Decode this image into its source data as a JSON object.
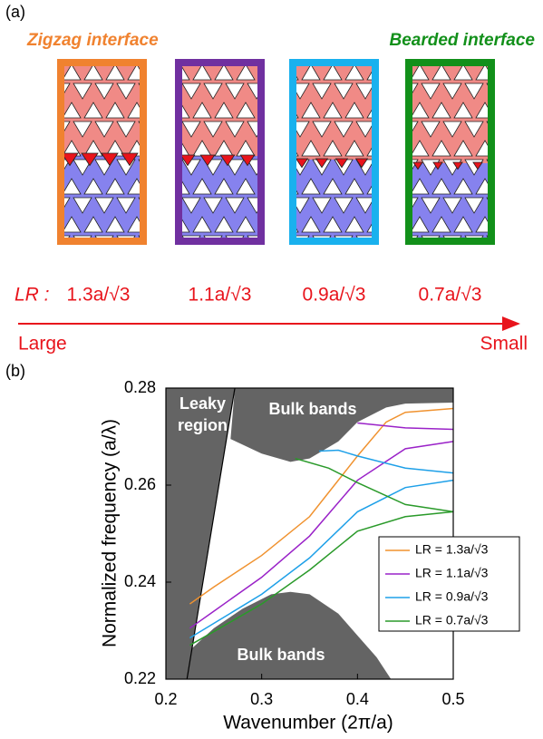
{
  "panel_a": {
    "label": "(a)",
    "left_title": "Zigzag interface",
    "right_title": "Bearded interface",
    "lr_label": "LR :",
    "lengths": [
      "1.3a/√3",
      "1.1a/√3",
      "0.9a/√3",
      "0.7a/√3"
    ],
    "border_colors": [
      "#f0822f",
      "#7030a0",
      "#19b1ee",
      "#12901a"
    ],
    "arrow_start": "Large",
    "arrow_end": "Small"
  },
  "chart_data": {
    "type": "line",
    "panel_label": "(b)",
    "xlabel": "Wavenumber (2π/a)",
    "ylabel": "Normalized frequency (a/λ)",
    "xlim": [
      0.2,
      0.5
    ],
    "ylim": [
      0.22,
      0.28
    ],
    "xticks": [
      0.2,
      0.3,
      0.4,
      0.5
    ],
    "yticks": [
      0.22,
      0.24,
      0.26,
      0.28
    ],
    "leaky_label": [
      "Leaky",
      "region"
    ],
    "upper_band_label": "Bulk bands",
    "lower_band_label": "Bulk bands",
    "light_line": {
      "x": [
        0.222,
        0.272
      ],
      "values": [
        0.22,
        0.28
      ]
    },
    "upper_band": {
      "x": [
        0.2675,
        0.3,
        0.33,
        0.35,
        0.38,
        0.4,
        0.43,
        0.45,
        0.5
      ],
      "values": [
        0.2695,
        0.2665,
        0.2648,
        0.2655,
        0.269,
        0.273,
        0.276,
        0.2768,
        0.277
      ]
    },
    "lower_band": {
      "x": [
        0.2225,
        0.25,
        0.28,
        0.31,
        0.33,
        0.35,
        0.38,
        0.4,
        0.42,
        0.435
      ],
      "values": [
        0.2255,
        0.2305,
        0.2345,
        0.2375,
        0.238,
        0.2375,
        0.2335,
        0.229,
        0.2245,
        0.22
      ]
    },
    "series": [
      {
        "name": "LR = 1.3a/√3",
        "color": "#f0922f",
        "x": [
          0.225,
          0.25,
          0.3,
          0.35,
          0.4,
          0.43,
          0.45,
          0.5
        ],
        "values": [
          0.2355,
          0.239,
          0.2455,
          0.2535,
          0.266,
          0.273,
          0.275,
          0.2758
        ]
      },
      {
        "name": "LR = 1.1a/√3",
        "color": "#9a22c8",
        "x": [
          0.225,
          0.25,
          0.3,
          0.35,
          0.4,
          0.45,
          0.5
        ],
        "values": [
          0.2305,
          0.234,
          0.241,
          0.2495,
          0.261,
          0.2675,
          0.269
        ],
        "upper_x": [
          0.4,
          0.45,
          0.5
        ],
        "upper_values": [
          0.2728,
          0.2718,
          0.2715
        ]
      },
      {
        "name": "LR = 0.9a/√3",
        "color": "#1ea0e8",
        "x": [
          0.225,
          0.25,
          0.3,
          0.35,
          0.4,
          0.45,
          0.5
        ],
        "values": [
          0.2285,
          0.2315,
          0.2375,
          0.245,
          0.2545,
          0.2595,
          0.261
        ],
        "upper_x": [
          0.36,
          0.38,
          0.4,
          0.45,
          0.5
        ],
        "upper_values": [
          0.267,
          0.2672,
          0.266,
          0.2635,
          0.2625
        ]
      },
      {
        "name": "LR = 0.7a/√3",
        "color": "#2a9a2a",
        "x": [
          0.225,
          0.25,
          0.3,
          0.35,
          0.4,
          0.45,
          0.5
        ],
        "values": [
          0.227,
          0.2298,
          0.2355,
          0.2425,
          0.2505,
          0.2535,
          0.2545
        ],
        "upper_x": [
          0.335,
          0.37,
          0.4,
          0.45,
          0.5
        ],
        "upper_values": [
          0.2655,
          0.2635,
          0.2605,
          0.256,
          0.2545
        ]
      }
    ]
  }
}
